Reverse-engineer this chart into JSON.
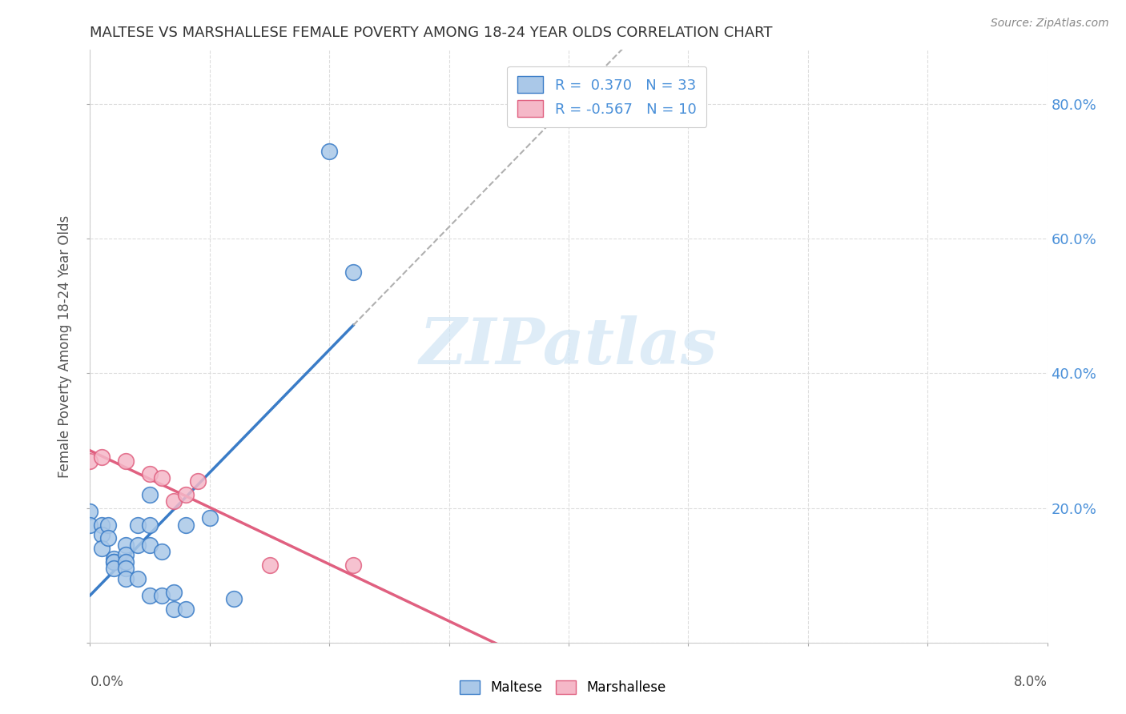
{
  "title": "MALTESE VS MARSHALLESE FEMALE POVERTY AMONG 18-24 YEAR OLDS CORRELATION CHART",
  "source": "Source: ZipAtlas.com",
  "ylabel": "Female Poverty Among 18-24 Year Olds",
  "maltese_R": 0.37,
  "maltese_N": 33,
  "marshallese_R": -0.567,
  "marshallese_N": 10,
  "maltese_x": [
    0.0,
    0.0,
    0.001,
    0.001,
    0.001,
    0.0015,
    0.0015,
    0.002,
    0.002,
    0.002,
    0.002,
    0.003,
    0.003,
    0.003,
    0.003,
    0.003,
    0.004,
    0.004,
    0.004,
    0.005,
    0.005,
    0.005,
    0.005,
    0.006,
    0.006,
    0.007,
    0.007,
    0.008,
    0.008,
    0.01,
    0.012,
    0.02,
    0.022
  ],
  "maltese_y": [
    0.195,
    0.175,
    0.175,
    0.16,
    0.14,
    0.175,
    0.155,
    0.125,
    0.12,
    0.12,
    0.11,
    0.145,
    0.13,
    0.12,
    0.11,
    0.095,
    0.175,
    0.145,
    0.095,
    0.22,
    0.175,
    0.145,
    0.07,
    0.135,
    0.07,
    0.075,
    0.05,
    0.175,
    0.05,
    0.185,
    0.065,
    0.73,
    0.55
  ],
  "marshallese_x": [
    0.0,
    0.001,
    0.003,
    0.005,
    0.006,
    0.007,
    0.008,
    0.009,
    0.015,
    0.022
  ],
  "marshallese_y": [
    0.27,
    0.275,
    0.27,
    0.25,
    0.245,
    0.21,
    0.22,
    0.24,
    0.115,
    0.115
  ],
  "maltese_color": "#aac8e8",
  "marshallese_color": "#f5b8c8",
  "maltese_line_color": "#3a7cc7",
  "marshallese_line_color": "#e06080",
  "dashed_line_color": "#b0b0b0",
  "watermark_color": "#d0e5f5",
  "background_color": "#ffffff",
  "grid_color": "#dddddd",
  "title_color": "#333333",
  "right_axis_color": "#4a90d9",
  "xlim": [
    0.0,
    0.08
  ],
  "ylim": [
    0.0,
    0.88
  ],
  "yticks": [
    0.0,
    0.2,
    0.4,
    0.6,
    0.8
  ],
  "ytick_labels": [
    "",
    "20.0%",
    "40.0%",
    "60.0%",
    "80.0%"
  ],
  "xticks": [
    0.0,
    0.01,
    0.02,
    0.03,
    0.04,
    0.05,
    0.06,
    0.07,
    0.08
  ]
}
